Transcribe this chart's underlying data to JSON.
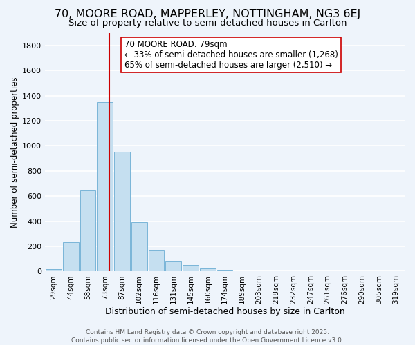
{
  "title": "70, MOORE ROAD, MAPPERLEY, NOTTINGHAM, NG3 6EJ",
  "subtitle": "Size of property relative to semi-detached houses in Carlton",
  "xlabel": "Distribution of semi-detached houses by size in Carlton",
  "ylabel": "Number of semi-detached properties",
  "bar_labels": [
    "29sqm",
    "44sqm",
    "58sqm",
    "73sqm",
    "87sqm",
    "102sqm",
    "116sqm",
    "131sqm",
    "145sqm",
    "160sqm",
    "174sqm",
    "189sqm",
    "203sqm",
    "218sqm",
    "232sqm",
    "247sqm",
    "261sqm",
    "276sqm",
    "290sqm",
    "305sqm",
    "319sqm"
  ],
  "bar_values": [
    20,
    235,
    645,
    1350,
    955,
    390,
    168,
    82,
    50,
    25,
    5,
    2,
    1,
    0,
    0,
    0,
    0,
    0,
    0,
    0,
    0
  ],
  "bar_color": "#c5dff0",
  "bar_edge_color": "#7ab5d8",
  "vline_x_index": 3,
  "vline_x_offset": 0.25,
  "vline_color": "#cc0000",
  "annotation_line1": "70 MOORE ROAD: 79sqm",
  "annotation_line2": "← 33% of semi-detached houses are smaller (1,268)",
  "annotation_line3": "65% of semi-detached houses are larger (2,510) →",
  "ylim": [
    0,
    1900
  ],
  "yticks": [
    0,
    200,
    400,
    600,
    800,
    1000,
    1200,
    1400,
    1600,
    1800
  ],
  "background_color": "#eef4fb",
  "grid_color": "#ffffff",
  "footer_line1": "Contains HM Land Registry data © Crown copyright and database right 2025.",
  "footer_line2": "Contains public sector information licensed under the Open Government Licence v3.0.",
  "title_fontsize": 11.5,
  "subtitle_fontsize": 9.5,
  "xlabel_fontsize": 9,
  "ylabel_fontsize": 8.5,
  "annotation_fontsize": 8.5,
  "footer_fontsize": 6.5,
  "tick_label_fontsize": 7.5,
  "ytick_fontsize": 8
}
